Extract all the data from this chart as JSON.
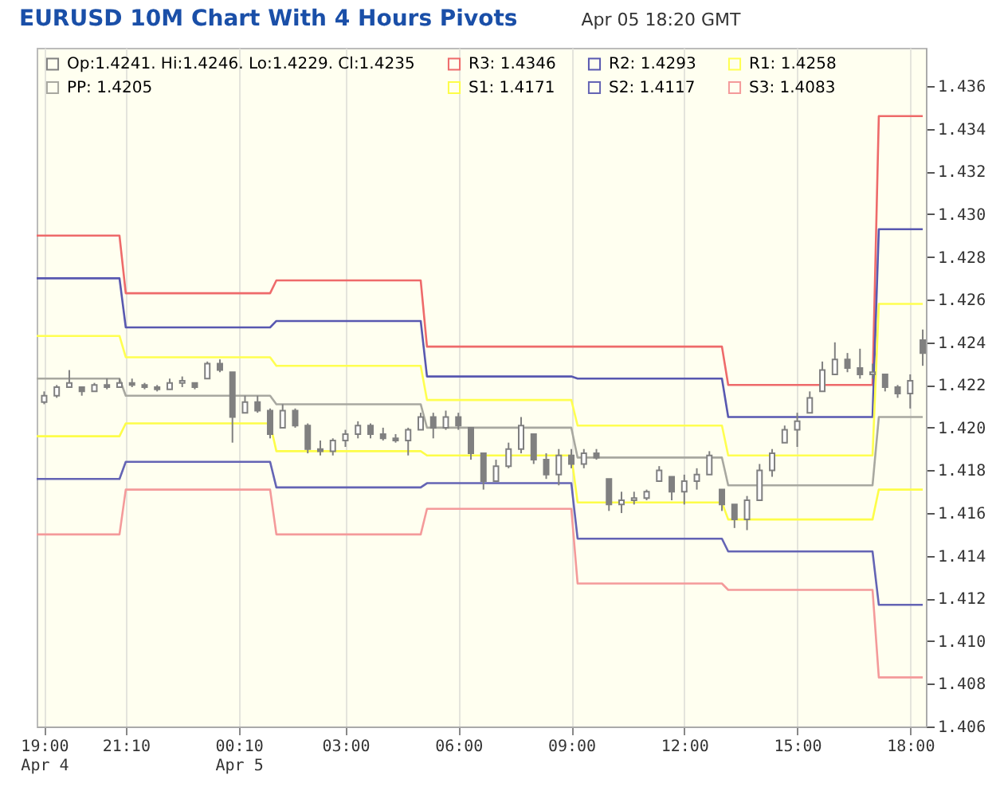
{
  "chart_data": {
    "type": "candlestick",
    "title": "EURUSD 10M Chart With 4 Hours Pivots",
    "subtitle": "Apr 05 18:20 GMT",
    "xlim": [
      "--04-04T18:48",
      "--04-05T18:25"
    ],
    "xticks": [
      {
        "value": "--04-04T19:00",
        "label": "19:00\nApr 4"
      },
      {
        "value": "--04-04T21:10",
        "label": "21:10"
      },
      {
        "value": "--04-05T00:10",
        "label": "00:10\nApr 5"
      },
      {
        "value": "--04-05T03:00",
        "label": "03:00"
      },
      {
        "value": "--04-05T06:00",
        "label": "06:00"
      },
      {
        "value": "--04-05T09:00",
        "label": "09:00"
      },
      {
        "value": "--04-05T12:00",
        "label": "12:00"
      },
      {
        "value": "--04-05T15:00",
        "label": "15:00"
      },
      {
        "value": "--04-05T18:00",
        "label": "18:00"
      }
    ],
    "ylim": [
      1.406,
      1.4378
    ],
    "yticks": [
      1.406,
      1.408,
      {
        "value": 1.41,
        "label": "1.410"
      },
      1.412,
      1.414,
      1.416,
      1.418,
      {
        "value": 1.42,
        "label": "1.420"
      },
      1.422,
      1.424,
      1.426,
      1.428,
      {
        "value": 1.43,
        "label": "1.430"
      },
      1.432,
      1.434,
      1.436
    ],
    "grid": "x",
    "legend": "top left",
    "series": [
      {
        "name": "Op:1.4241. Hi:1.4246. Lo:1.4229. Cl:1.4235",
        "type": "candlestick",
        "color": "#808080",
        "x": [
          "--04-04T19:00",
          "--04-04T19:20",
          "--04-04T19:40",
          "--04-04T20:00",
          "--04-04T20:20",
          "--04-04T20:40",
          "--04-04T21:00",
          "--04-04T21:20",
          "--04-04T21:40",
          "--04-04T22:00",
          "--04-04T22:20",
          "--04-04T22:40",
          "--04-04T23:00",
          "--04-04T23:20",
          "--04-04T23:40",
          "--04-05T00:00",
          "--04-05T00:20",
          "--04-05T00:40",
          "--04-05T01:00",
          "--04-05T01:20",
          "--04-05T01:40",
          "--04-05T02:00",
          "--04-05T02:20",
          "--04-05T02:40",
          "--04-05T03:00",
          "--04-05T03:20",
          "--04-05T03:40",
          "--04-05T04:00",
          "--04-05T04:20",
          "--04-05T04:40",
          "--04-05T05:00",
          "--04-05T05:20",
          "--04-05T05:40",
          "--04-05T06:00",
          "--04-05T06:20",
          "--04-05T06:40",
          "--04-05T07:00",
          "--04-05T07:20",
          "--04-05T07:40",
          "--04-05T08:00",
          "--04-05T08:20",
          "--04-05T08:40",
          "--04-05T09:00",
          "--04-05T09:20",
          "--04-05T09:40",
          "--04-05T10:00",
          "--04-05T10:20",
          "--04-05T10:40",
          "--04-05T11:00",
          "--04-05T11:20",
          "--04-05T11:40",
          "--04-05T12:00",
          "--04-05T12:20",
          "--04-05T12:40",
          "--04-05T13:00",
          "--04-05T13:20",
          "--04-05T13:40",
          "--04-05T14:00",
          "--04-05T14:20",
          "--04-05T14:40",
          "--04-05T15:00",
          "--04-05T15:20",
          "--04-05T15:40",
          "--04-05T16:00",
          "--04-05T16:20",
          "--04-05T16:40",
          "--04-05T17:00",
          "--04-05T17:20",
          "--04-05T17:40",
          "--04-05T18:00",
          "--04-05T18:20"
        ],
        "ohlc": [
          [
            1.4212,
            1.4217,
            1.4211,
            1.4215
          ],
          [
            1.4215,
            1.422,
            1.4214,
            1.4219
          ],
          [
            1.4219,
            1.4227,
            1.4219,
            1.4221
          ],
          [
            1.4219,
            1.4219,
            1.4215,
            1.4217
          ],
          [
            1.4217,
            1.4221,
            1.4217,
            1.422
          ],
          [
            1.422,
            1.4223,
            1.4218,
            1.4219
          ],
          [
            1.4219,
            1.4223,
            1.4219,
            1.4221
          ],
          [
            1.4221,
            1.4223,
            1.4219,
            1.422
          ],
          [
            1.422,
            1.4221,
            1.4218,
            1.4219
          ],
          [
            1.4219,
            1.422,
            1.4217,
            1.4218
          ],
          [
            1.4218,
            1.4223,
            1.4218,
            1.4221
          ],
          [
            1.4221,
            1.4224,
            1.4219,
            1.4222
          ],
          [
            1.4221,
            1.4221,
            1.4218,
            1.4219
          ],
          [
            1.4223,
            1.4231,
            1.4223,
            1.423
          ],
          [
            1.423,
            1.4232,
            1.4226,
            1.4227
          ],
          [
            1.4226,
            1.4226,
            1.4193,
            1.4205
          ],
          [
            1.4207,
            1.4215,
            1.4207,
            1.4212
          ],
          [
            1.4212,
            1.4215,
            1.4207,
            1.4208
          ],
          [
            1.4208,
            1.4209,
            1.4195,
            1.4197
          ],
          [
            1.42,
            1.4211,
            1.42,
            1.4208
          ],
          [
            1.4208,
            1.4209,
            1.42,
            1.4201
          ],
          [
            1.4201,
            1.4202,
            1.4188,
            1.419
          ],
          [
            1.419,
            1.4194,
            1.4187,
            1.4189
          ],
          [
            1.4189,
            1.4195,
            1.4187,
            1.4194
          ],
          [
            1.4194,
            1.4199,
            1.4191,
            1.4197
          ],
          [
            1.4197,
            1.4203,
            1.4195,
            1.4201
          ],
          [
            1.4201,
            1.4202,
            1.4195,
            1.4197
          ],
          [
            1.4197,
            1.42,
            1.4194,
            1.4195
          ],
          [
            1.4195,
            1.4197,
            1.4193,
            1.4194
          ],
          [
            1.4194,
            1.42,
            1.4187,
            1.4199
          ],
          [
            1.4199,
            1.4207,
            1.4199,
            1.4205
          ],
          [
            1.4205,
            1.4207,
            1.4195,
            1.42
          ],
          [
            1.42,
            1.4208,
            1.4199,
            1.4205
          ],
          [
            1.4205,
            1.4207,
            1.4199,
            1.4201
          ],
          [
            1.42,
            1.42,
            1.4185,
            1.4188
          ],
          [
            1.4188,
            1.4188,
            1.4171,
            1.4175
          ],
          [
            1.4175,
            1.4185,
            1.4175,
            1.4182
          ],
          [
            1.4182,
            1.4193,
            1.4181,
            1.419
          ],
          [
            1.419,
            1.4205,
            1.4188,
            1.4201
          ],
          [
            1.4197,
            1.4197,
            1.4183,
            1.4185
          ],
          [
            1.4185,
            1.4188,
            1.4176,
            1.4178
          ],
          [
            1.4178,
            1.419,
            1.4173,
            1.4187
          ],
          [
            1.4187,
            1.419,
            1.4181,
            1.4183
          ],
          [
            1.4183,
            1.419,
            1.4181,
            1.4188
          ],
          [
            1.4188,
            1.419,
            1.4185,
            1.4186
          ],
          [
            1.4176,
            1.4176,
            1.4161,
            1.4164
          ],
          [
            1.4164,
            1.417,
            1.416,
            1.4166
          ],
          [
            1.4166,
            1.417,
            1.4164,
            1.4167
          ],
          [
            1.4167,
            1.4171,
            1.4166,
            1.417
          ],
          [
            1.4175,
            1.4182,
            1.4175,
            1.418
          ],
          [
            1.4177,
            1.4177,
            1.4166,
            1.417
          ],
          [
            1.417,
            1.4178,
            1.4164,
            1.4175
          ],
          [
            1.4175,
            1.4181,
            1.4171,
            1.4178
          ],
          [
            1.4178,
            1.4189,
            1.4178,
            1.4187
          ],
          [
            1.4171,
            1.4171,
            1.4161,
            1.4164
          ],
          [
            1.4164,
            1.4164,
            1.4153,
            1.4157
          ],
          [
            1.4157,
            1.4168,
            1.4152,
            1.4166
          ],
          [
            1.4166,
            1.4183,
            1.4166,
            1.418
          ],
          [
            1.418,
            1.419,
            1.4177,
            1.4188
          ],
          [
            1.4193,
            1.4201,
            1.4193,
            1.4199
          ],
          [
            1.4199,
            1.4207,
            1.4191,
            1.4203
          ],
          [
            1.4207,
            1.4217,
            1.4207,
            1.4214
          ],
          [
            1.4217,
            1.4231,
            1.4217,
            1.4227
          ],
          [
            1.4225,
            1.424,
            1.4225,
            1.4232
          ],
          [
            1.4232,
            1.4235,
            1.4226,
            1.4228
          ],
          [
            1.4228,
            1.4237,
            1.4223,
            1.4225
          ],
          [
            1.4225,
            1.423,
            1.4223,
            1.4226
          ],
          [
            1.4225,
            1.4225,
            1.4217,
            1.4219
          ],
          [
            1.4219,
            1.422,
            1.4214,
            1.4216
          ],
          [
            1.4216,
            1.4225,
            1.4209,
            1.4222
          ],
          [
            1.4241,
            1.4246,
            1.4229,
            1.4235
          ]
        ]
      },
      {
        "name": "R3: 1.4346",
        "type": "line",
        "color": "#ee6a6a",
        "x": [
          "--04-04T18:48",
          "--04-04T21:00",
          "--04-04T21:10",
          "--04-05T01:00",
          "--04-05T01:10",
          "--04-05T05:00",
          "--04-05T05:10",
          "--04-05T09:00",
          "--04-05T09:10",
          "--04-05T13:00",
          "--04-05T13:10",
          "--04-05T17:00",
          "--04-05T17:10",
          "--04-05T18:20"
        ],
        "values": [
          1.429,
          1.429,
          1.4263,
          1.4263,
          1.4269,
          1.4269,
          1.4238,
          1.4238,
          1.4238,
          1.4238,
          1.422,
          1.422,
          1.4346,
          1.4346
        ]
      },
      {
        "name": "R2: 1.4293",
        "type": "line",
        "color": "#5858b0",
        "x": [
          "--04-04T18:48",
          "--04-04T21:00",
          "--04-04T21:10",
          "--04-05T01:00",
          "--04-05T01:10",
          "--04-05T05:00",
          "--04-05T05:10",
          "--04-05T09:00",
          "--04-05T09:10",
          "--04-05T13:00",
          "--04-05T13:10",
          "--04-05T17:00",
          "--04-05T17:10",
          "--04-05T18:20"
        ],
        "values": [
          1.427,
          1.427,
          1.4247,
          1.4247,
          1.425,
          1.425,
          1.4224,
          1.4224,
          1.4223,
          1.4223,
          1.4205,
          1.4205,
          1.4293,
          1.4293
        ]
      },
      {
        "name": "R1: 1.4258",
        "type": "line",
        "color": "#ffff50",
        "x": [
          "--04-04T18:48",
          "--04-04T21:00",
          "--04-04T21:10",
          "--04-05T01:00",
          "--04-05T01:10",
          "--04-05T05:00",
          "--04-05T05:10",
          "--04-05T09:00",
          "--04-05T09:10",
          "--04-05T13:00",
          "--04-05T13:10",
          "--04-05T17:00",
          "--04-05T17:10",
          "--04-05T18:20"
        ],
        "values": [
          1.4243,
          1.4243,
          1.4233,
          1.4233,
          1.4229,
          1.4229,
          1.4213,
          1.4213,
          1.4201,
          1.4201,
          1.4187,
          1.4187,
          1.4258,
          1.4258
        ]
      },
      {
        "name": "PP: 1.4205",
        "type": "line",
        "color": "#a8a8a0",
        "x": [
          "--04-04T18:48",
          "--04-04T21:00",
          "--04-04T21:10",
          "--04-05T01:00",
          "--04-05T01:10",
          "--04-05T05:00",
          "--04-05T05:10",
          "--04-05T09:00",
          "--04-05T09:10",
          "--04-05T13:00",
          "--04-05T13:10",
          "--04-05T17:00",
          "--04-05T17:10",
          "--04-05T18:20"
        ],
        "values": [
          1.4223,
          1.4223,
          1.4215,
          1.4215,
          1.4211,
          1.4211,
          1.42,
          1.42,
          1.4186,
          1.4186,
          1.4173,
          1.4173,
          1.4205,
          1.4205
        ]
      },
      {
        "name": "S1: 1.4171",
        "type": "line",
        "color": "#fdfd48",
        "x": [
          "--04-04T18:48",
          "--04-04T21:00",
          "--04-04T21:10",
          "--04-05T01:00",
          "--04-05T01:10",
          "--04-05T05:00",
          "--04-05T05:10",
          "--04-05T09:00",
          "--04-05T09:10",
          "--04-05T13:00",
          "--04-05T13:10",
          "--04-05T17:00",
          "--04-05T17:10",
          "--04-05T18:20"
        ],
        "values": [
          1.4196,
          1.4196,
          1.4202,
          1.4202,
          1.4189,
          1.4189,
          1.4187,
          1.4187,
          1.4165,
          1.4165,
          1.4157,
          1.4157,
          1.4171,
          1.4171
        ]
      },
      {
        "name": "S2: 1.4117",
        "type": "line",
        "color": "#6464b4",
        "x": [
          "--04-04T18:48",
          "--04-04T21:00",
          "--04-04T21:10",
          "--04-05T01:00",
          "--04-05T01:10",
          "--04-05T05:00",
          "--04-05T05:10",
          "--04-05T09:00",
          "--04-05T09:10",
          "--04-05T13:00",
          "--04-05T13:10",
          "--04-05T17:00",
          "--04-05T17:10",
          "--04-05T18:20"
        ],
        "values": [
          1.4176,
          1.4176,
          1.4184,
          1.4184,
          1.4172,
          1.4172,
          1.4174,
          1.4174,
          1.4148,
          1.4148,
          1.4142,
          1.4142,
          1.4117,
          1.4117
        ]
      },
      {
        "name": "S3: 1.4083",
        "type": "line",
        "color": "#f49a9a",
        "x": [
          "--04-04T18:48",
          "--04-04T21:00",
          "--04-04T21:10",
          "--04-05T01:00",
          "--04-05T01:10",
          "--04-05T05:00",
          "--04-05T05:10",
          "--04-05T09:00",
          "--04-05T09:10",
          "--04-05T13:00",
          "--04-05T13:10",
          "--04-05T17:00",
          "--04-05T17:10",
          "--04-05T18:20"
        ],
        "values": [
          1.415,
          1.415,
          1.4171,
          1.4171,
          1.415,
          1.415,
          1.4162,
          1.4162,
          1.4127,
          1.4127,
          1.4124,
          1.4124,
          1.4083,
          1.4083
        ]
      }
    ]
  }
}
